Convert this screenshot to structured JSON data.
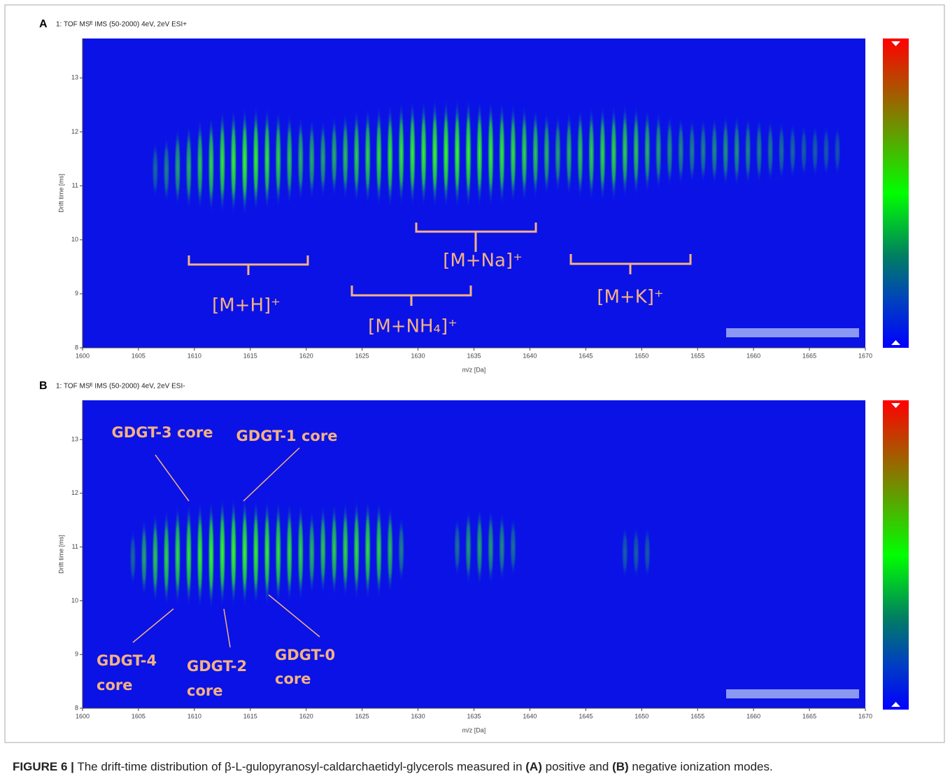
{
  "chart_data": [
    {
      "type": "ims-map",
      "panel_label": "A",
      "title": "1: TOF MSᴱ IMS (50-2000) 4eV, 2eV ESI+",
      "xlabel": "m/z [Da]",
      "ylabel": "Drift time [ms]",
      "xlim": [
        1600,
        1670
      ],
      "ylim": [
        8,
        13.73
      ],
      "xticks": [
        1600,
        1605,
        1610,
        1615,
        1620,
        1625,
        1630,
        1635,
        1640,
        1645,
        1650,
        1655,
        1660,
        1665,
        1670
      ],
      "yticks": [
        8,
        9,
        10,
        11,
        12,
        13
      ],
      "annotations": [
        "[M+H]⁺",
        "[M+NH₄]⁺",
        "[M+Na]⁺",
        "[M+K]⁺"
      ],
      "x": [
        1606.5,
        1607.5,
        1608.5,
        1609.5,
        1610.5,
        1611.5,
        1612.5,
        1613.5,
        1614.5,
        1615.5,
        1616.5,
        1617.5,
        1618.5,
        1619.5,
        1620.5,
        1621.5,
        1622.5,
        1623.5,
        1624.5,
        1625.5,
        1626.5,
        1627.5,
        1628.5,
        1629.5,
        1630.5,
        1631.5,
        1632.5,
        1633.5,
        1634.5,
        1635.5,
        1636.5,
        1637.5,
        1638.5,
        1639.5,
        1640.5,
        1641.5,
        1642.5,
        1643.5,
        1644.5,
        1645.5,
        1646.5,
        1647.5,
        1648.5,
        1649.5,
        1650.5,
        1651.5,
        1652.5,
        1653.5,
        1654.5,
        1655.5,
        1656.5,
        1657.5,
        1658.5,
        1659.5,
        1660.5,
        1661.5,
        1662.5,
        1663.5,
        1664.5,
        1665.5,
        1666.5,
        1667.5
      ],
      "values": [
        11.3,
        11.3,
        11.35,
        11.35,
        11.4,
        11.4,
        11.45,
        11.45,
        11.45,
        11.5,
        11.5,
        11.5,
        11.5,
        11.5,
        11.5,
        11.5,
        11.55,
        11.55,
        11.55,
        11.55,
        11.55,
        11.55,
        11.6,
        11.6,
        11.6,
        11.6,
        11.6,
        11.6,
        11.6,
        11.6,
        11.6,
        11.6,
        11.6,
        11.6,
        11.6,
        11.6,
        11.6,
        11.6,
        11.6,
        11.6,
        11.6,
        11.6,
        11.65,
        11.65,
        11.65,
        11.65,
        11.65,
        11.65,
        11.65,
        11.65,
        11.65,
        11.65,
        11.65,
        11.65,
        11.65,
        11.65,
        11.65,
        11.65,
        11.65,
        11.65,
        11.65,
        11.65
      ],
      "intensity": [
        0.15,
        0.3,
        0.5,
        0.6,
        0.7,
        0.8,
        0.9,
        0.95,
        1,
        0.95,
        0.9,
        0.8,
        0.7,
        0.6,
        0.55,
        0.5,
        0.55,
        0.65,
        0.75,
        0.8,
        0.85,
        0.9,
        0.9,
        0.95,
        0.95,
        1,
        1,
        1,
        1,
        0.95,
        0.95,
        0.9,
        0.85,
        0.8,
        0.7,
        0.6,
        0.5,
        0.6,
        0.7,
        0.75,
        0.8,
        0.8,
        0.75,
        0.7,
        0.6,
        0.5,
        0.4,
        0.35,
        0.3,
        0.3,
        0.35,
        0.4,
        0.4,
        0.35,
        0.3,
        0.25,
        0.2,
        0.15,
        0.1,
        0.1,
        0.08,
        0.05
      ]
    },
    {
      "type": "ims-map",
      "panel_label": "B",
      "title": "1: TOF MSᴱ IMS (50-2000) 4eV, 2eV ESI-",
      "xlabel": "m/z [Da]",
      "ylabel": "Drift time [ms]",
      "xlim": [
        1600,
        1670
      ],
      "ylim": [
        8,
        13.73
      ],
      "xticks": [
        1600,
        1605,
        1610,
        1615,
        1620,
        1625,
        1630,
        1635,
        1640,
        1645,
        1650,
        1655,
        1660,
        1665,
        1670
      ],
      "yticks": [
        8,
        9,
        10,
        11,
        12,
        13
      ],
      "annotations": [
        [
          "GDGT-3 core"
        ],
        [
          "GDGT-1 core"
        ],
        [
          "GDGT-4",
          "core"
        ],
        [
          "GDGT-2",
          "core"
        ],
        [
          "GDGT-0",
          "core"
        ]
      ],
      "x": [
        1604.5,
        1605.5,
        1606.5,
        1607.5,
        1608.5,
        1609.5,
        1610.5,
        1611.5,
        1612.5,
        1613.5,
        1614.5,
        1615.5,
        1616.5,
        1617.5,
        1618.5,
        1619.5,
        1620.5,
        1621.5,
        1622.5,
        1623.5,
        1624.5,
        1625.5,
        1626.5,
        1627.5,
        1628.5,
        1633.5,
        1634.5,
        1635.5,
        1636.5,
        1637.5,
        1638.5,
        1648.5,
        1649.5,
        1650.5
      ],
      "values": [
        10.8,
        10.8,
        10.8,
        10.8,
        10.85,
        10.85,
        10.85,
        10.85,
        10.9,
        10.9,
        10.9,
        10.9,
        10.9,
        10.9,
        10.9,
        10.9,
        10.9,
        10.95,
        10.95,
        10.95,
        10.95,
        10.95,
        10.95,
        10.95,
        10.95,
        11.0,
        11.0,
        11.0,
        11.0,
        11.0,
        11.0,
        10.9,
        10.9,
        10.9
      ],
      "intensity": [
        0.15,
        0.5,
        0.7,
        0.8,
        0.85,
        0.9,
        0.95,
        1,
        1,
        1,
        1,
        0.95,
        0.95,
        0.9,
        0.85,
        0.8,
        0.6,
        0.7,
        0.75,
        0.8,
        0.85,
        0.85,
        0.8,
        0.65,
        0.3,
        0.2,
        0.45,
        0.5,
        0.45,
        0.35,
        0.2,
        0.1,
        0.1,
        0.08
      ]
    }
  ],
  "caption": {
    "label": "FIGURE 6 |",
    "parts": [
      "The drift-time distribution of β-L-gulopyranosyl-caldarchaetidyl-glycerols measured in",
      "(A)",
      "positive and",
      "(B)",
      "negative ionization modes."
    ]
  }
}
